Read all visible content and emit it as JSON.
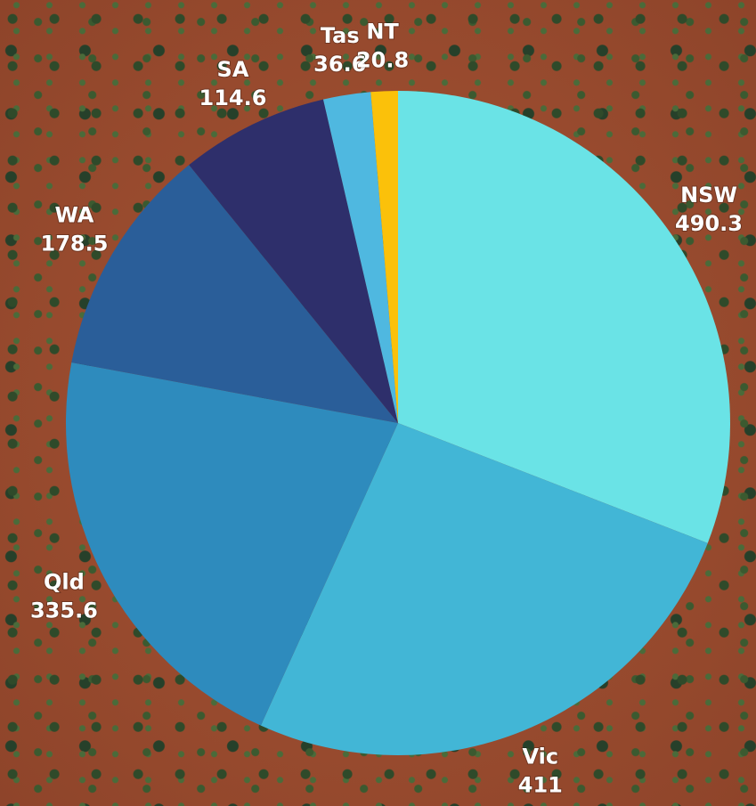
{
  "chart_data": {
    "type": "pie",
    "categories": [
      "NSW",
      "Vic",
      "Qld",
      "WA",
      "SA",
      "Tas",
      "NT"
    ],
    "values": [
      490.3,
      411,
      335.6,
      178.5,
      114.6,
      36.6,
      20.8
    ],
    "colors": [
      "#6ae3e6",
      "#42b6d6",
      "#2e8bbd",
      "#2a5e99",
      "#2e2f6b",
      "#4fb8e0",
      "#fbc10a"
    ]
  }
}
